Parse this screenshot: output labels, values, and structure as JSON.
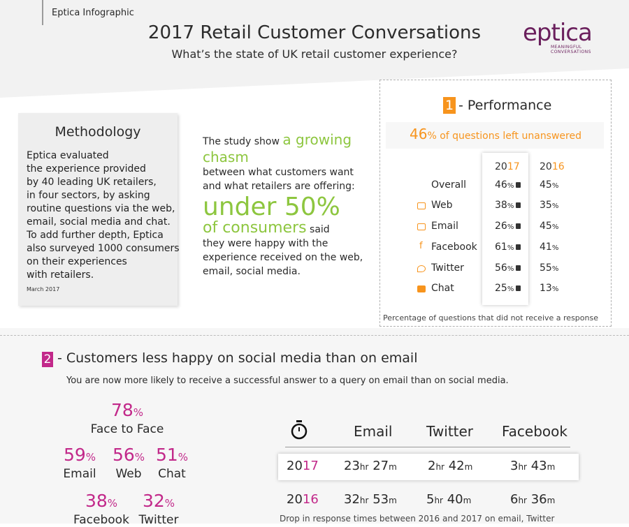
{
  "header": {
    "badge": "Eptica Infographic",
    "title": "2017 Retail Customer Conversations",
    "subtitle": "What’s the state of UK retail customer experience?",
    "logo_word": "eptica",
    "logo_tagline": "MEANINGFUL CONVERSATIONS"
  },
  "methodology": {
    "title": "Methodology",
    "lines": [
      "Eptica evaluated",
      "the experience provided",
      " by 40 leading UK retailers,",
      "in four sectors, by asking",
      "routine questions via the web,",
      "email, social media and chat.",
      "To add further depth, Eptica",
      "also surveyed 1000 consumers",
      "on their experiences",
      "with retailers."
    ],
    "date": "March 2017"
  },
  "study": {
    "line1": "The study show",
    "line1_accent": "a growing",
    "line2_accent": "chasm",
    "line3": "between what customers want",
    "line4": "and what retailers are offering:",
    "big": "under 50%",
    "line5_accent": "of consumers",
    "line5": "said",
    "line6": "they were happy with the",
    "line7": "experience received on the web,",
    "line8": "email, social media."
  },
  "performance": {
    "number": "1",
    "title": "- Performance",
    "headline_value": "46",
    "headline_text": "% of questions left unanswered",
    "year_2017": {
      "prefix": "20",
      "suffix": "17"
    },
    "year_2016": {
      "prefix": "20",
      "suffix": "16"
    },
    "rows": [
      {
        "label": "Overall",
        "icon": "",
        "v2017": "46",
        "v2016": "45"
      },
      {
        "label": "Web",
        "icon": "browser-icon",
        "v2017": "38",
        "v2016": "35"
      },
      {
        "label": "Email",
        "icon": "envelope-icon",
        "v2017": "26",
        "v2016": "45"
      },
      {
        "label": "Facebook",
        "icon": "facebook-icon",
        "v2017": "61",
        "v2016": "41"
      },
      {
        "label": "Twitter",
        "icon": "twitter-icon",
        "v2017": "56",
        "v2016": "55"
      },
      {
        "label": "Chat",
        "icon": "chat-icon",
        "v2017": "25",
        "v2016": "13"
      }
    ],
    "pct": "%",
    "footnote": "Percentage of questions that did not receive a response"
  },
  "section2": {
    "number": "2",
    "title": "- Customers less happy on social media than on email",
    "subtitle": "You are now more likely to receive a successful answer to a query on email than on social media.",
    "stats": [
      {
        "value": "78",
        "label": "Face to Face"
      },
      {
        "value": "59",
        "label": "Email"
      },
      {
        "value": "56",
        "label": "Web"
      },
      {
        "value": "51",
        "label": "Chat"
      },
      {
        "value": "38",
        "label": "Facebook"
      },
      {
        "value": "32",
        "label": "Twitter"
      }
    ],
    "pct": "%"
  },
  "response_times": {
    "headers": [
      "Email",
      "Twitter",
      "Facebook"
    ],
    "hr": "hr",
    "m": "m",
    "rows": [
      {
        "year_prefix": "20",
        "year_suffix": "17",
        "email": [
          "23",
          "27"
        ],
        "twitter": [
          "2",
          "42"
        ],
        "facebook": [
          "3",
          "43"
        ]
      },
      {
        "year_prefix": "20",
        "year_suffix": "16",
        "email": [
          "32",
          "53"
        ],
        "twitter": [
          "5",
          "40"
        ],
        "facebook": [
          "6",
          "36"
        ]
      }
    ],
    "footnote": "Drop in response times between 2016 and 2017 on email, Twitter"
  },
  "colors": {
    "orange": "#f7941d",
    "green": "#8dc63f",
    "magenta": "#c2298a",
    "logo_purple": "#6a1f5c"
  }
}
